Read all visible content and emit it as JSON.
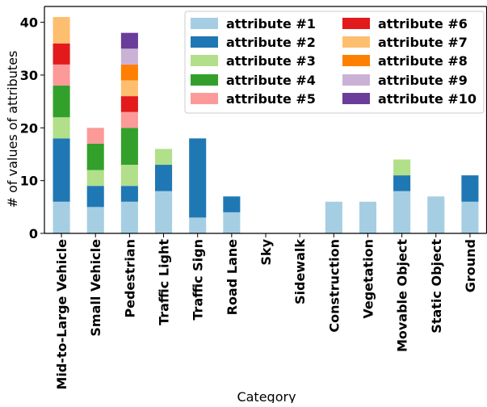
{
  "chart_data": {
    "type": "bar",
    "stacked": true,
    "title": "",
    "xlabel": "Category",
    "ylabel": "# of values of attributes",
    "ylim": [
      0,
      43
    ],
    "yticks": [
      0,
      10,
      20,
      30,
      40
    ],
    "grid": false,
    "legend_position": "top-right",
    "categories": [
      "Mid-to-Large Vehicle",
      "Small Vehicle",
      "Pedestrian",
      "Traffic Light",
      "Traffic Sign",
      "Road Lane",
      "Sky",
      "Sidewalk",
      "Construction",
      "Vegetation",
      "Movable Object",
      "Static Object",
      "Ground"
    ],
    "series": [
      {
        "name": "attribute #1",
        "color": "#a6cee3",
        "values": [
          6,
          5,
          6,
          8,
          3,
          4,
          0,
          0,
          6,
          6,
          8,
          7,
          6
        ]
      },
      {
        "name": "attribute #2",
        "color": "#1f78b4",
        "values": [
          12,
          4,
          3,
          5,
          15,
          3,
          0,
          0,
          0,
          0,
          3,
          0,
          5
        ]
      },
      {
        "name": "attribute #3",
        "color": "#b2df8a",
        "values": [
          4,
          3,
          4,
          3,
          0,
          0,
          0,
          0,
          0,
          0,
          3,
          0,
          0
        ]
      },
      {
        "name": "attribute #4",
        "color": "#33a02c",
        "values": [
          6,
          5,
          7,
          0,
          0,
          0,
          0,
          0,
          0,
          0,
          0,
          0,
          0
        ]
      },
      {
        "name": "attribute #5",
        "color": "#fb9a99",
        "values": [
          4,
          3,
          3,
          0,
          0,
          0,
          0,
          0,
          0,
          0,
          0,
          0,
          0
        ]
      },
      {
        "name": "attribute #6",
        "color": "#e31a1c",
        "values": [
          4,
          0,
          3,
          0,
          0,
          0,
          0,
          0,
          0,
          0,
          0,
          0,
          0
        ]
      },
      {
        "name": "attribute #7",
        "color": "#fdbf6f",
        "values": [
          5,
          0,
          3,
          0,
          0,
          0,
          0,
          0,
          0,
          0,
          0,
          0,
          0
        ]
      },
      {
        "name": "attribute #8",
        "color": "#ff7f00",
        "values": [
          0,
          0,
          3,
          0,
          0,
          0,
          0,
          0,
          0,
          0,
          0,
          0,
          0
        ]
      },
      {
        "name": "attribute #9",
        "color": "#cab2d6",
        "values": [
          0,
          0,
          3,
          0,
          0,
          0,
          0,
          0,
          0,
          0,
          0,
          0,
          0
        ]
      },
      {
        "name": "attribute #10",
        "color": "#6a3d9a",
        "values": [
          0,
          0,
          3,
          0,
          0,
          0,
          0,
          0,
          0,
          0,
          0,
          0,
          0
        ]
      }
    ]
  }
}
